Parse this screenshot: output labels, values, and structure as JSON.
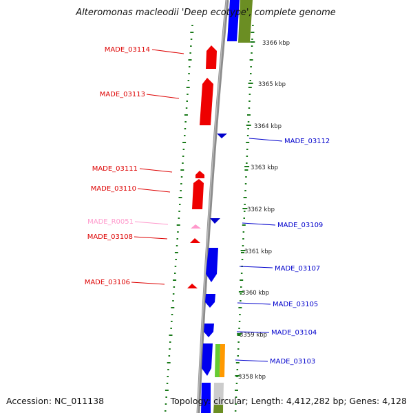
{
  "title": "Alteromonas macleodii 'Deep ecotype', complete genome",
  "accession": "Accession: NC_011138",
  "summary": "Topology: circular; Length: 4,412,282 bp; Genes: 4,128",
  "colors": {
    "forward_gene": "#ff0000",
    "reverse_gene": "#0000ff",
    "rna_gene": "#ff99cc",
    "backbone": "#8c8c8c",
    "gc_dots": "#1a7a1a",
    "orange_track": "#ff9900",
    "green_track": "#66cc33",
    "olive_track": "#6b8e23"
  },
  "ticks": [
    {
      "label": "3366 kbp"
    },
    {
      "label": "3365 kbp"
    },
    {
      "label": "3364 kbp"
    },
    {
      "label": "3363 kbp"
    },
    {
      "label": "3362 kbp"
    },
    {
      "label": "3361 kbp"
    },
    {
      "label": "3360 kbp"
    },
    {
      "label": "3359 kbp"
    },
    {
      "label": "3358 kbp"
    }
  ],
  "genes": [
    {
      "name": "MADE_03114",
      "strand": "forward"
    },
    {
      "name": "MADE_03113",
      "strand": "forward"
    },
    {
      "name": "MADE_03112",
      "strand": "reverse"
    },
    {
      "name": "MADE_03111",
      "strand": "forward"
    },
    {
      "name": "MADE_03110",
      "strand": "forward"
    },
    {
      "name": "MADE_03109",
      "strand": "reverse"
    },
    {
      "name": "MADE_R0051",
      "strand": "rna"
    },
    {
      "name": "MADE_03108",
      "strand": "forward"
    },
    {
      "name": "MADE_03107",
      "strand": "reverse"
    },
    {
      "name": "MADE_03106",
      "strand": "forward"
    },
    {
      "name": "MADE_03105",
      "strand": "reverse"
    },
    {
      "name": "MADE_03104",
      "strand": "reverse"
    },
    {
      "name": "MADE_03103",
      "strand": "reverse"
    }
  ]
}
